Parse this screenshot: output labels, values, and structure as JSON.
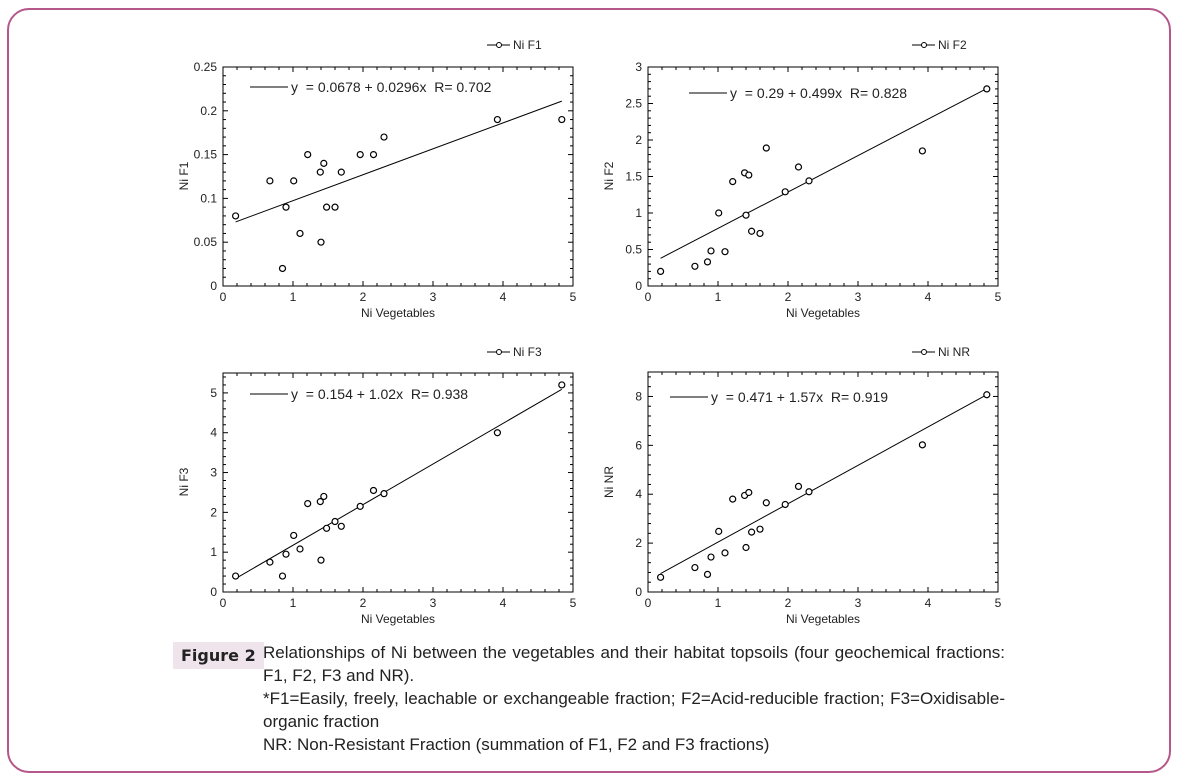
{
  "figure": {
    "label": "Figure 2",
    "caption_lines": [
      "Relationships of Ni between the vegetables and their habitat topsoils (four geochemical fractions: F1, F2, F3 and NR).",
      "*F1=Easily, freely, leachable or exchangeable fraction; F2=Acid-reducible fraction; F3=Oxidisable-organic fraction",
      "NR: Non-Resistant Fraction (summation of F1, F2 and F3 fractions)"
    ],
    "border_color": "#b5578a",
    "label_bg": "#efe3ec"
  },
  "chart_data": [
    {
      "type": "scatter",
      "title": "",
      "legend": "Ni F1",
      "legend_position": "top-right",
      "equation": "y  = 0.0678 + 0.0296x  R= 0.702",
      "fit": {
        "intercept": 0.0678,
        "slope": 0.0296,
        "R": 0.702
      },
      "xlabel": "Ni Vegetables",
      "ylabel": "Ni F1",
      "xlim": [
        0,
        5
      ],
      "ylim": [
        0,
        0.25
      ],
      "xticks": [
        "0",
        "1",
        "2",
        "3",
        "4",
        "5"
      ],
      "yticks": [
        "0",
        "0.05",
        "0.1",
        "0.15",
        "0.2",
        "0.25"
      ],
      "x": [
        0.18,
        0.67,
        0.85,
        0.9,
        1.01,
        1.1,
        1.21,
        1.39,
        1.4,
        1.44,
        1.48,
        1.6,
        1.69,
        1.96,
        2.15,
        2.3,
        3.92,
        4.84
      ],
      "y": [
        0.08,
        0.12,
        0.02,
        0.09,
        0.12,
        0.06,
        0.15,
        0.13,
        0.05,
        0.14,
        0.09,
        0.09,
        0.13,
        0.15,
        0.15,
        0.17,
        0.19,
        0.19
      ]
    },
    {
      "type": "scatter",
      "title": "",
      "legend": "Ni F2",
      "legend_position": "top-right",
      "equation": "y  = 0.29 + 0.499x  R= 0.828",
      "fit": {
        "intercept": 0.29,
        "slope": 0.499,
        "R": 0.828
      },
      "xlabel": "Ni Vegetables",
      "ylabel": "Ni F2",
      "xlim": [
        0,
        5
      ],
      "ylim": [
        0,
        3
      ],
      "xticks": [
        "0",
        "1",
        "2",
        "3",
        "4",
        "5"
      ],
      "yticks": [
        "0",
        "0.5",
        "1",
        "1.5",
        "2",
        "2.5",
        "3"
      ],
      "x": [
        0.18,
        0.67,
        0.85,
        0.9,
        1.01,
        1.1,
        1.21,
        1.38,
        1.4,
        1.44,
        1.48,
        1.6,
        1.69,
        1.96,
        2.15,
        2.3,
        3.92,
        4.84
      ],
      "y": [
        0.2,
        0.27,
        0.33,
        0.48,
        1.0,
        0.47,
        1.43,
        1.55,
        0.97,
        1.52,
        0.75,
        0.72,
        1.89,
        1.29,
        1.63,
        1.44,
        1.85,
        2.7
      ]
    },
    {
      "type": "scatter",
      "title": "",
      "legend": "Ni F3",
      "legend_position": "top-right",
      "equation": "y  = 0.154 + 1.02x  R= 0.938",
      "fit": {
        "intercept": 0.154,
        "slope": 1.02,
        "R": 0.938
      },
      "xlabel": "Ni Vegetables",
      "ylabel": "Ni F3",
      "xlim": [
        0,
        5
      ],
      "ylim": [
        0,
        5.5
      ],
      "xticks": [
        "0",
        "1",
        "2",
        "3",
        "4",
        "5"
      ],
      "yticks": [
        "0",
        "1",
        "2",
        "3",
        "4",
        "5"
      ],
      "x": [
        0.18,
        0.67,
        0.85,
        0.9,
        1.01,
        1.1,
        1.21,
        1.39,
        1.4,
        1.44,
        1.48,
        1.6,
        1.69,
        1.96,
        2.15,
        2.3,
        3.92,
        4.84
      ],
      "y": [
        0.4,
        0.75,
        0.4,
        0.95,
        1.42,
        1.08,
        2.22,
        2.27,
        0.8,
        2.4,
        1.6,
        1.77,
        1.65,
        2.15,
        2.55,
        2.47,
        4.0,
        5.2
      ]
    },
    {
      "type": "scatter",
      "title": "",
      "legend": "Ni NR",
      "legend_position": "top-right",
      "equation": "y  = 0.471 + 1.57x  R= 0.919",
      "fit": {
        "intercept": 0.471,
        "slope": 1.57,
        "R": 0.919
      },
      "xlabel": "Ni Vegetables",
      "ylabel": "Ni NR",
      "xlim": [
        0,
        5
      ],
      "ylim": [
        0,
        9
      ],
      "xticks": [
        "0",
        "1",
        "2",
        "3",
        "4",
        "5"
      ],
      "yticks": [
        "0",
        "2",
        "4",
        "6",
        "8"
      ],
      "x": [
        0.18,
        0.67,
        0.85,
        0.9,
        1.01,
        1.1,
        1.21,
        1.38,
        1.4,
        1.44,
        1.48,
        1.6,
        1.69,
        1.96,
        2.15,
        2.3,
        3.92,
        4.84
      ],
      "y": [
        0.6,
        1.0,
        0.72,
        1.43,
        2.48,
        1.6,
        3.8,
        3.95,
        1.82,
        4.07,
        2.45,
        2.57,
        3.65,
        3.58,
        4.32,
        4.1,
        6.02,
        8.07
      ]
    }
  ]
}
